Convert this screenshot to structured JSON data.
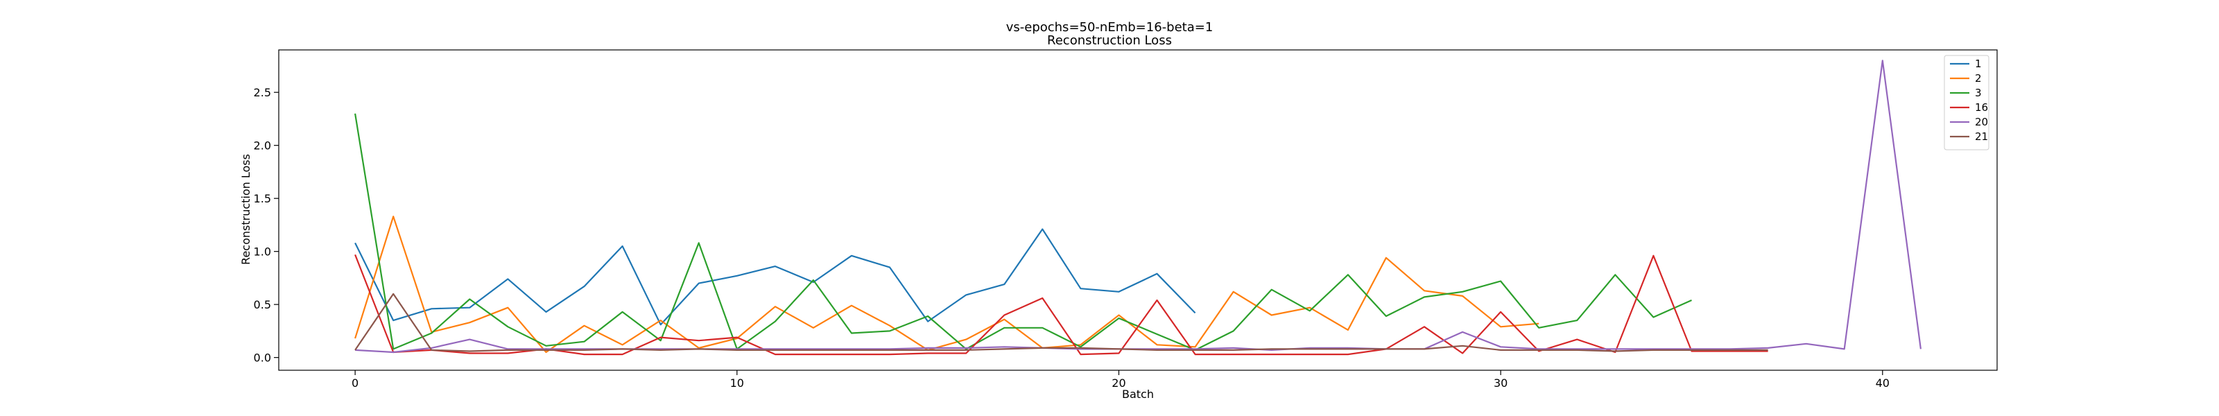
{
  "chart_data": {
    "type": "line",
    "title": "vs-epochs=50-nEmb=16-beta=1",
    "subtitle": "Reconstruction Loss",
    "xlabel": "Batch",
    "ylabel": "Reconstruction Loss",
    "xlim": [
      -2,
      43
    ],
    "ylim": [
      -0.12,
      2.9
    ],
    "xticks": [
      0,
      10,
      20,
      30,
      40
    ],
    "yticks": [
      0.0,
      0.5,
      1.0,
      1.5,
      2.0,
      2.5
    ],
    "ytick_labels": [
      "0.0",
      "0.5",
      "1.0",
      "1.5",
      "2.0",
      "2.5"
    ],
    "grid": false,
    "legend_position": "top-right",
    "series": [
      {
        "name": "1",
        "color": "#1f77b4",
        "y": [
          1.08,
          0.35,
          0.46,
          0.47,
          0.74,
          0.43,
          0.67,
          1.05,
          0.31,
          0.7,
          0.77,
          0.86,
          0.71,
          0.96,
          0.85,
          0.34,
          0.59,
          0.69,
          1.21,
          0.65,
          0.62,
          0.79,
          0.42
        ]
      },
      {
        "name": "2",
        "color": "#ff7f0e",
        "y": [
          0.18,
          1.33,
          0.24,
          0.33,
          0.47,
          0.05,
          0.3,
          0.12,
          0.35,
          0.09,
          0.18,
          0.48,
          0.28,
          0.49,
          0.3,
          0.07,
          0.17,
          0.36,
          0.09,
          0.12,
          0.4,
          0.12,
          0.1,
          0.62,
          0.4,
          0.47,
          0.26,
          0.94,
          0.63,
          0.58,
          0.29,
          0.32
        ]
      },
      {
        "name": "3",
        "color": "#2ca02c",
        "y": [
          2.3,
          0.08,
          0.23,
          0.55,
          0.29,
          0.11,
          0.15,
          0.43,
          0.16,
          1.08,
          0.08,
          0.34,
          0.73,
          0.23,
          0.25,
          0.39,
          0.08,
          0.28,
          0.28,
          0.1,
          0.37,
          0.22,
          0.07,
          0.25,
          0.64,
          0.44,
          0.78,
          0.39,
          0.57,
          0.62,
          0.72,
          0.28,
          0.35,
          0.78,
          0.38,
          0.54
        ]
      },
      {
        "name": "16",
        "color": "#d62728",
        "y": [
          0.97,
          0.05,
          0.07,
          0.04,
          0.04,
          0.08,
          0.03,
          0.03,
          0.19,
          0.16,
          0.19,
          0.03,
          0.03,
          0.03,
          0.03,
          0.04,
          0.04,
          0.4,
          0.56,
          0.03,
          0.04,
          0.54,
          0.03,
          0.03,
          0.03,
          0.03,
          0.03,
          0.08,
          0.29,
          0.04,
          0.43,
          0.06,
          0.17,
          0.05,
          0.96,
          0.06,
          0.06,
          0.06
        ]
      },
      {
        "name": "20",
        "color": "#9467bd",
        "y": [
          0.07,
          0.05,
          0.09,
          0.17,
          0.08,
          0.08,
          0.08,
          0.08,
          0.08,
          0.08,
          0.08,
          0.08,
          0.08,
          0.08,
          0.08,
          0.09,
          0.09,
          0.1,
          0.09,
          0.08,
          0.08,
          0.08,
          0.08,
          0.09,
          0.07,
          0.09,
          0.09,
          0.08,
          0.08,
          0.24,
          0.1,
          0.08,
          0.08,
          0.08,
          0.08,
          0.08,
          0.08,
          0.09,
          0.13,
          0.08,
          2.8,
          0.08
        ]
      },
      {
        "name": "21",
        "color": "#8c564b",
        "y": [
          0.07,
          0.6,
          0.07,
          0.06,
          0.07,
          0.07,
          0.07,
          0.08,
          0.07,
          0.08,
          0.07,
          0.07,
          0.07,
          0.07,
          0.07,
          0.07,
          0.07,
          0.08,
          0.09,
          0.09,
          0.08,
          0.07,
          0.07,
          0.07,
          0.08,
          0.08,
          0.08,
          0.08,
          0.08,
          0.11,
          0.07,
          0.07,
          0.07,
          0.06,
          0.07,
          0.07,
          0.07,
          0.07
        ]
      }
    ]
  }
}
